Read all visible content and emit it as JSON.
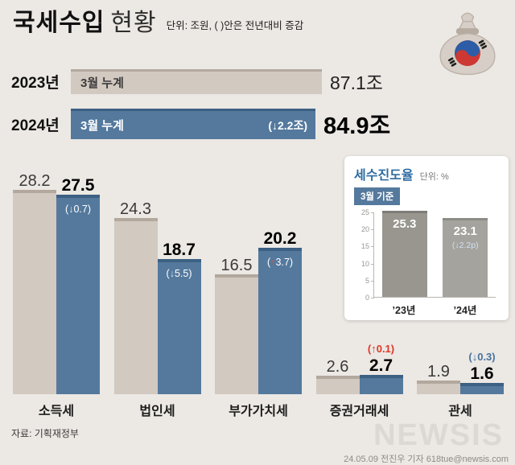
{
  "header": {
    "title_main": "국세수입",
    "title_sub": "현황",
    "unit_note": "단위: 조원, ( )안은 전년대비 증감"
  },
  "chart_data": [
    {
      "type": "bar",
      "orientation": "horizontal",
      "name": "cumulative-national-tax-revenue",
      "categories": [
        "2023년",
        "2024년"
      ],
      "bar_labels": [
        "3월 누계",
        "3월 누계"
      ],
      "values": [
        87.1,
        84.9
      ],
      "value_labels": [
        "87.1조",
        "84.9조"
      ],
      "annotations": [
        "",
        "(↓2.2조)"
      ]
    },
    {
      "type": "bar",
      "name": "tax-revenue-by-item",
      "categories": [
        "소득세",
        "법인세",
        "부가가치세",
        "증권거래세",
        "관세"
      ],
      "series": [
        {
          "name": "2023년 3월 누계",
          "values": [
            28.2,
            24.3,
            16.5,
            2.6,
            1.9
          ]
        },
        {
          "name": "2024년 3월 누계",
          "values": [
            27.5,
            18.7,
            20.2,
            2.7,
            1.6
          ]
        }
      ],
      "deltas": [
        {
          "arrow": "↓",
          "text": "0.7",
          "direction": "down",
          "position": "inside"
        },
        {
          "arrow": "↓",
          "text": "5.5",
          "direction": "down",
          "position": "inside"
        },
        {
          "arrow": "↑",
          "text": "3.7",
          "direction": "up",
          "position": "inside"
        },
        {
          "arrow": "↑",
          "text": "0.1",
          "direction": "up",
          "position": "above"
        },
        {
          "arrow": "↓",
          "text": "0.3",
          "direction": "down",
          "position": "above"
        }
      ]
    },
    {
      "type": "bar",
      "name": "tax-progress-rate",
      "title": "세수진도율",
      "unit_label": "단위: %",
      "basis_label": "3월 기준",
      "categories": [
        "’23년",
        "’24년"
      ],
      "values": [
        25.3,
        23.1
      ],
      "value_labels": [
        "25.3",
        "23.1"
      ],
      "delta": {
        "arrow": "↓",
        "text": "2.2p",
        "direction": "down"
      },
      "ylim": [
        0,
        25
      ],
      "yticks": [
        25,
        20,
        15,
        10,
        5,
        0
      ]
    }
  ],
  "footer": {
    "source": "자료: 기획재정부",
    "brand": "NEWSIS",
    "credit": "24.05.09 전진우 기자 618tue@newsis.com"
  },
  "colors": {
    "background": "#ece8e4",
    "bar_2023_beige": "#d2c9c1",
    "bar_2024_blue": "#54799d",
    "increase_red": "#de3726",
    "decrease_blue": "#46749e",
    "progress_gray": "#98968f",
    "panel_title_blue": "#2e6ca3"
  }
}
